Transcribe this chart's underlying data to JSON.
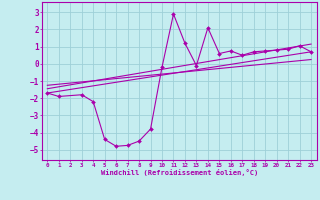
{
  "xlabel": "Windchill (Refroidissement éolien,°C)",
  "bg_color": "#c5edf0",
  "grid_color": "#9ed0d8",
  "line_color": "#aa00aa",
  "spine_color": "#aa00aa",
  "xlim": [
    -0.5,
    23.5
  ],
  "ylim": [
    -5.6,
    3.6
  ],
  "yticks": [
    -5,
    -4,
    -3,
    -2,
    -1,
    0,
    1,
    2,
    3
  ],
  "xticks": [
    0,
    1,
    2,
    3,
    4,
    5,
    6,
    7,
    8,
    9,
    10,
    11,
    12,
    13,
    14,
    15,
    16,
    17,
    18,
    19,
    20,
    21,
    22,
    23
  ],
  "zigzag_x": [
    0,
    1,
    3,
    4,
    5,
    6,
    7,
    8,
    9,
    10,
    11,
    12,
    13,
    14,
    15,
    16,
    17,
    18,
    19,
    20,
    21,
    22,
    23
  ],
  "zigzag_y": [
    -1.7,
    -1.9,
    -1.8,
    -2.2,
    -4.4,
    -4.8,
    -4.75,
    -4.5,
    -3.8,
    -0.2,
    2.9,
    1.2,
    -0.1,
    2.1,
    0.6,
    0.75,
    0.5,
    0.7,
    0.75,
    0.8,
    0.85,
    1.05,
    0.7
  ],
  "trend1_x": [
    0,
    23
  ],
  "trend1_y": [
    -1.7,
    0.7
  ],
  "trend2_x": [
    0,
    23
  ],
  "trend2_y": [
    -1.45,
    1.15
  ],
  "trend3_x": [
    0,
    23
  ],
  "trend3_y": [
    -1.25,
    0.25
  ]
}
